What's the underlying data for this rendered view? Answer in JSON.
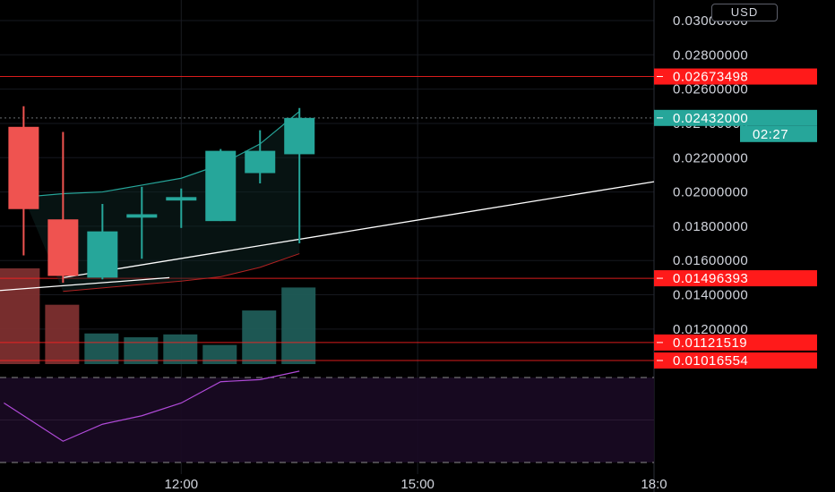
{
  "currency": "USD",
  "colors": {
    "background": "#000000",
    "up": "#26a69a",
    "down": "#ef5350",
    "support_line": "#ff2222",
    "trend_line": "#ffffff",
    "ma_line": "#26a69a",
    "ma_slow_line": "#b22222",
    "rsi_line": "#b04ad8",
    "rsi_band": "#1a0a24"
  },
  "chart_data": {
    "type": "candlestick",
    "y_axis": {
      "min": 0.0098,
      "max": 0.0312,
      "ticks": [
        "0.03000000",
        "0.02800000",
        "0.02600000",
        "0.02400000",
        "0.02200000",
        "0.02000000",
        "0.01800000",
        "0.01600000",
        "0.01400000",
        "0.01200000"
      ],
      "tick_values": [
        0.03,
        0.028,
        0.026,
        0.024,
        0.022,
        0.02,
        0.018,
        0.016,
        0.014,
        0.012
      ],
      "scale": "linear"
    },
    "x_axis": {
      "ticks": [
        "12:00",
        "15:00",
        "18:0"
      ],
      "tick_hours": [
        12,
        15,
        18
      ],
      "visible_range_hours": [
        9.7,
        18.0
      ]
    },
    "candles": [
      {
        "time": 10.0,
        "open": 0.0238,
        "high": 0.025,
        "low": 0.0163,
        "close": 0.019
      },
      {
        "time": 10.5,
        "open": 0.0184,
        "high": 0.0235,
        "low": 0.0147,
        "close": 0.0151
      },
      {
        "time": 11.0,
        "open": 0.015,
        "high": 0.0193,
        "low": 0.0149,
        "close": 0.0177
      },
      {
        "time": 11.5,
        "open": 0.0185,
        "high": 0.0203,
        "low": 0.0161,
        "close": 0.0187
      },
      {
        "time": 12.0,
        "open": 0.0195,
        "high": 0.0202,
        "low": 0.0179,
        "close": 0.0197
      },
      {
        "time": 12.5,
        "open": 0.0183,
        "high": 0.0225,
        "low": 0.0183,
        "close": 0.0224
      },
      {
        "time": 13.0,
        "open": 0.0211,
        "high": 0.0236,
        "low": 0.0205,
        "close": 0.0224
      },
      {
        "time": 13.5,
        "open": 0.0222,
        "high": 0.0249,
        "low": 0.017,
        "close": 0.02432
      }
    ],
    "volume": {
      "max": 100,
      "values": [
        100,
        62,
        32,
        28,
        31,
        20,
        56,
        80
      ],
      "directions": [
        "down",
        "down",
        "up",
        "up",
        "up",
        "up",
        "up",
        "up"
      ]
    },
    "current_price": {
      "label": "0.02432000",
      "value": 0.02432,
      "countdown": "02:27"
    },
    "horizontal_levels": [
      {
        "label": "0.02673498",
        "value": 0.02673498
      },
      {
        "label": "0.01496393",
        "value": 0.01496393
      },
      {
        "label": "0.01121519",
        "value": 0.01121519
      },
      {
        "label": "0.01016554",
        "value": 0.01016554
      }
    ],
    "trend_lines": [
      {
        "from": {
          "time": 9.7,
          "value": 0.01425
        },
        "to": {
          "time": 11.85,
          "value": 0.015
        }
      },
      {
        "from": {
          "time": 10.5,
          "value": 0.015
        },
        "to": {
          "time": 18.0,
          "value": 0.0206
        }
      }
    ],
    "moving_average": [
      {
        "time": 10.0,
        "value": 0.0197
      },
      {
        "time": 10.5,
        "value": 0.0199
      },
      {
        "time": 11.0,
        "value": 0.02
      },
      {
        "time": 11.5,
        "value": 0.0204
      },
      {
        "time": 12.0,
        "value": 0.0208
      },
      {
        "time": 12.5,
        "value": 0.0216
      },
      {
        "time": 13.0,
        "value": 0.0228
      },
      {
        "time": 13.5,
        "value": 0.0247
      }
    ],
    "slow_moving_average": [
      {
        "time": 10.5,
        "value": 0.0142
      },
      {
        "time": 11.0,
        "value": 0.0144
      },
      {
        "time": 11.5,
        "value": 0.0146
      },
      {
        "time": 12.0,
        "value": 0.0148
      },
      {
        "time": 12.5,
        "value": 0.01505
      },
      {
        "time": 13.0,
        "value": 0.0156
      },
      {
        "time": 13.5,
        "value": 0.0164
      }
    ],
    "rsi": {
      "min": 0,
      "max": 100,
      "band": [
        30,
        70
      ],
      "points": [
        {
          "time": 9.75,
          "value": 58
        },
        {
          "time": 10.5,
          "value": 40
        },
        {
          "time": 11.0,
          "value": 48
        },
        {
          "time": 11.5,
          "value": 52
        },
        {
          "time": 12.0,
          "value": 58
        },
        {
          "time": 12.5,
          "value": 68
        },
        {
          "time": 13.0,
          "value": 69
        },
        {
          "time": 13.5,
          "value": 73
        }
      ]
    }
  }
}
